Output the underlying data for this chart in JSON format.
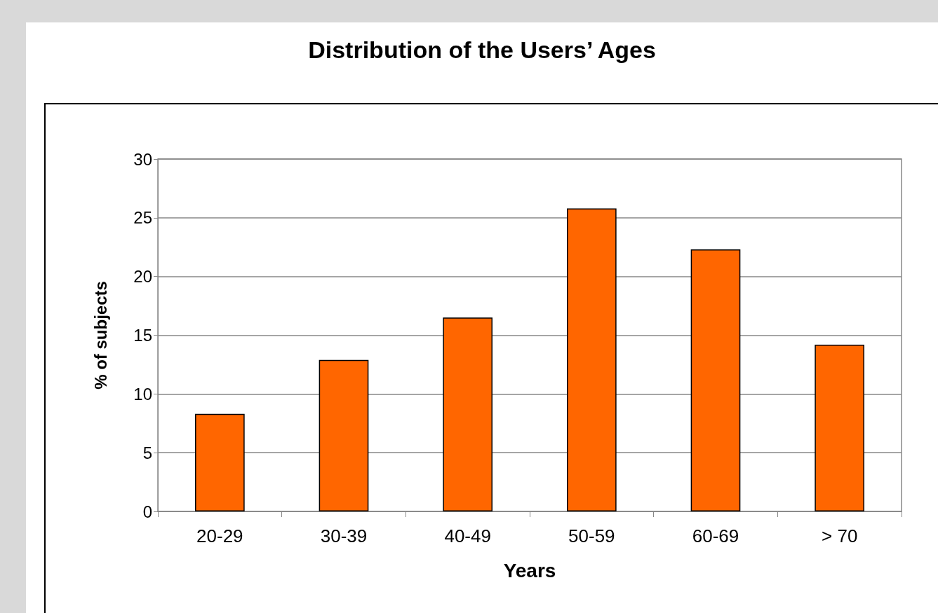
{
  "chart_data": {
    "type": "bar",
    "title": "Distribution of the Users’ Ages",
    "xlabel": "Years",
    "ylabel": "% of subjects",
    "categories": [
      "20-29",
      "30-39",
      "40-49",
      "50-59",
      "60-69",
      "> 70"
    ],
    "values": [
      8.3,
      12.9,
      16.5,
      25.8,
      22.3,
      14.2
    ],
    "color": "#ff6600",
    "ylim": [
      0,
      30
    ],
    "yticks": [
      0,
      5,
      10,
      15,
      20,
      25,
      30
    ],
    "grid": "y"
  }
}
